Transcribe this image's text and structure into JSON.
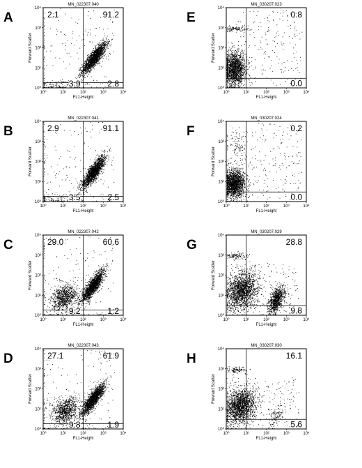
{
  "figure": {
    "panels": [
      "A",
      "B",
      "C",
      "D",
      "E",
      "F",
      "G",
      "H"
    ]
  },
  "chart_data": [
    {
      "panel": "A",
      "type": "scatter",
      "title": "MN_022307.040",
      "xlabel": "FL1-Height",
      "ylabel": "Forward Scatter",
      "xscale": "log",
      "yscale": "log",
      "xlim": [
        1,
        10000
      ],
      "ylim": [
        1,
        10000
      ],
      "x_ticks": [
        "10⁰",
        "10¹",
        "10²",
        "10³",
        "10⁴"
      ],
      "y_ticks": [
        "10⁰",
        "10¹",
        "10²",
        "10³",
        "10⁴"
      ],
      "gate": {
        "x": 100,
        "y": 1.8
      },
      "quadrants": {
        "upper_left": "2.1",
        "upper_right": "91.2",
        "lower_left": "3.9",
        "lower_right": "2.8"
      },
      "populations": [
        {
          "x_center": 350,
          "y_center": 32,
          "spread_x": 0.3,
          "spread_y": 0.38,
          "correlation": 0.85,
          "density": "high"
        },
        {
          "x_center": 5,
          "y_center": 1.4,
          "spread_x": 0.65,
          "spread_y": 0.15,
          "correlation": 0,
          "density": "low"
        },
        {
          "x_center": 20,
          "y_center": 60,
          "spread_x": 0.7,
          "spread_y": 0.8,
          "correlation": 0,
          "density": "sparse"
        }
      ]
    },
    {
      "panel": "B",
      "type": "scatter",
      "title": "MN_022307.041",
      "xlabel": "FL1-Height",
      "ylabel": "Forward Scatter",
      "xscale": "log",
      "yscale": "log",
      "xlim": [
        1,
        10000
      ],
      "ylim": [
        1,
        10000
      ],
      "x_ticks": [
        "10⁰",
        "10¹",
        "10²",
        "10³",
        "10⁴"
      ],
      "y_ticks": [
        "10⁰",
        "10¹",
        "10²",
        "10³",
        "10⁴"
      ],
      "gate": {
        "x": 100,
        "y": 1.8
      },
      "quadrants": {
        "upper_left": "2.9",
        "upper_right": "91.1",
        "lower_left": "3.5",
        "lower_right": "2.5"
      },
      "populations": [
        {
          "x_center": 320,
          "y_center": 30,
          "spread_x": 0.28,
          "spread_y": 0.38,
          "correlation": 0.85,
          "density": "high"
        },
        {
          "x_center": 5,
          "y_center": 1.4,
          "spread_x": 0.65,
          "spread_y": 0.15,
          "correlation": 0,
          "density": "low"
        },
        {
          "x_center": 20,
          "y_center": 60,
          "spread_x": 0.7,
          "spread_y": 0.8,
          "correlation": 0,
          "density": "sparse"
        }
      ]
    },
    {
      "panel": "C",
      "type": "scatter",
      "title": "MN_022307.042",
      "xlabel": "FL1-Height",
      "ylabel": "Forward Scatter",
      "xscale": "log",
      "yscale": "log",
      "xlim": [
        1,
        10000
      ],
      "ylim": [
        1,
        10000
      ],
      "x_ticks": [
        "10⁰",
        "10¹",
        "10²",
        "10³",
        "10⁴"
      ],
      "y_ticks": [
        "10⁰",
        "10¹",
        "10²",
        "10³",
        "10⁴"
      ],
      "gate": {
        "x": 100,
        "y": 1.8
      },
      "quadrants": {
        "upper_left": "29.0",
        "upper_right": "60.6",
        "lower_left": "9.2",
        "lower_right": "1.2"
      },
      "populations": [
        {
          "x_center": 300,
          "y_center": 30,
          "spread_x": 0.28,
          "spread_y": 0.38,
          "correlation": 0.85,
          "density": "high"
        },
        {
          "x_center": 12,
          "y_center": 8,
          "spread_x": 0.32,
          "spread_y": 0.32,
          "correlation": 0.3,
          "density": "medium"
        },
        {
          "x_center": 20,
          "y_center": 60,
          "spread_x": 0.7,
          "spread_y": 0.8,
          "correlation": 0,
          "density": "sparse"
        }
      ]
    },
    {
      "panel": "D",
      "type": "scatter",
      "title": "MN_022307.043",
      "xlabel": "FL1-Height",
      "ylabel": "Forward Scatter",
      "xscale": "log",
      "yscale": "log",
      "xlim": [
        1,
        10000
      ],
      "ylim": [
        1,
        10000
      ],
      "x_ticks": [
        "10⁰",
        "10¹",
        "10²",
        "10³",
        "10⁴"
      ],
      "y_ticks": [
        "10⁰",
        "10¹",
        "10²",
        "10³",
        "10⁴"
      ],
      "gate": {
        "x": 100,
        "y": 1.8
      },
      "quadrants": {
        "upper_left": "27.1",
        "upper_right": "61.9",
        "lower_left": "9.8",
        "lower_right": "1.9"
      },
      "populations": [
        {
          "x_center": 300,
          "y_center": 30,
          "spread_x": 0.28,
          "spread_y": 0.38,
          "correlation": 0.85,
          "density": "high"
        },
        {
          "x_center": 12,
          "y_center": 8,
          "spread_x": 0.32,
          "spread_y": 0.32,
          "correlation": 0.3,
          "density": "medium"
        },
        {
          "x_center": 20,
          "y_center": 60,
          "spread_x": 0.7,
          "spread_y": 0.8,
          "correlation": 0,
          "density": "sparse"
        }
      ]
    },
    {
      "panel": "E",
      "type": "scatter",
      "title": "MN_030207.023",
      "xlabel": "FL1-Height",
      "ylabel": "Forward Scatter",
      "xscale": "log",
      "yscale": "log",
      "xlim": [
        1,
        10000
      ],
      "ylim": [
        1,
        10000
      ],
      "x_ticks": [
        "10⁰",
        "10¹",
        "10²",
        "10³",
        "10⁴"
      ],
      "y_ticks": [
        "10⁰",
        "10¹",
        "10²",
        "10³",
        "10⁴"
      ],
      "gate": {
        "x": 10,
        "y": 3
      },
      "quadrants": {
        "upper_left": "",
        "upper_right": "0.8",
        "lower_left": "",
        "lower_right": "0.0"
      },
      "populations": [
        {
          "x_center": 2.5,
          "y_center": 9,
          "spread_x": 0.28,
          "spread_y": 0.42,
          "correlation": 0,
          "density": "high"
        },
        {
          "x_center": 3,
          "y_center": 900,
          "spread_x": 0.3,
          "spread_y": 0.08,
          "correlation": 0,
          "density": "low"
        },
        {
          "x_center": 150,
          "y_center": 100,
          "spread_x": 0.5,
          "spread_y": 0.6,
          "correlation": 0,
          "density": "sparse"
        }
      ]
    },
    {
      "panel": "F",
      "type": "scatter",
      "title": "MN_030207.024",
      "xlabel": "FL1-Height",
      "ylabel": "Forward Scatter",
      "xscale": "log",
      "yscale": "log",
      "xlim": [
        1,
        10000
      ],
      "ylim": [
        1,
        10000
      ],
      "x_ticks": [
        "10⁰",
        "10¹",
        "10²",
        "10³",
        "10⁴"
      ],
      "y_ticks": [
        "10⁰",
        "10¹",
        "10²",
        "10³",
        "10⁴"
      ],
      "gate": {
        "x": 10,
        "y": 3
      },
      "quadrants": {
        "upper_left": "",
        "upper_right": "0.2",
        "lower_left": "",
        "lower_right": "0.0"
      },
      "populations": [
        {
          "x_center": 2.5,
          "y_center": 8,
          "spread_x": 0.26,
          "spread_y": 0.35,
          "correlation": 0,
          "density": "high"
        },
        {
          "x_center": 3,
          "y_center": 600,
          "spread_x": 0.28,
          "spread_y": 0.45,
          "correlation": 0,
          "density": "low"
        },
        {
          "x_center": 150,
          "y_center": 100,
          "spread_x": 0.5,
          "spread_y": 0.6,
          "correlation": 0,
          "density": "sparse"
        }
      ]
    },
    {
      "panel": "G",
      "type": "scatter",
      "title": "MN_030207.029",
      "xlabel": "FL1-Height",
      "ylabel": "Forward Scatter",
      "xscale": "log",
      "yscale": "log",
      "xlim": [
        1,
        10000
      ],
      "ylim": [
        1,
        10000
      ],
      "x_ticks": [
        "10⁰",
        "10¹",
        "10²",
        "10³",
        "10⁴"
      ],
      "y_ticks": [
        "10⁰",
        "10¹",
        "10²",
        "10³",
        "10⁴"
      ],
      "gate": {
        "x": 10,
        "y": 3
      },
      "quadrants": {
        "upper_left": "",
        "upper_right": "28.8",
        "lower_left": "",
        "lower_right": "9.8"
      },
      "populations": [
        {
          "x_center": 6,
          "y_center": 18,
          "spread_x": 0.38,
          "spread_y": 0.45,
          "correlation": 0.2,
          "density": "high"
        },
        {
          "x_center": 320,
          "y_center": 6,
          "spread_x": 0.2,
          "spread_y": 0.32,
          "correlation": 0.5,
          "density": "medium"
        },
        {
          "x_center": 3,
          "y_center": 900,
          "spread_x": 0.25,
          "spread_y": 0.08,
          "correlation": 0,
          "density": "low"
        },
        {
          "x_center": 50,
          "y_center": 20,
          "spread_x": 0.6,
          "spread_y": 0.4,
          "correlation": 0,
          "density": "sparse"
        }
      ]
    },
    {
      "panel": "H",
      "type": "scatter",
      "title": "MN_030207.030",
      "xlabel": "FL1-Height",
      "ylabel": "Forward Scatter",
      "xscale": "log",
      "yscale": "log",
      "xlim": [
        1,
        10000
      ],
      "ylim": [
        1,
        10000
      ],
      "x_ticks": [
        "10⁰",
        "10¹",
        "10²",
        "10³",
        "10⁴"
      ],
      "y_ticks": [
        "10⁰",
        "10¹",
        "10²",
        "10³",
        "10⁴"
      ],
      "gate": {
        "x": 10,
        "y": 3
      },
      "quadrants": {
        "upper_left": "",
        "upper_right": "16.1",
        "lower_left": "",
        "lower_right": "5.6"
      },
      "populations": [
        {
          "x_center": 5,
          "y_center": 14,
          "spread_x": 0.38,
          "spread_y": 0.42,
          "correlation": 0.2,
          "density": "high"
        },
        {
          "x_center": 300,
          "y_center": 5,
          "spread_x": 0.2,
          "spread_y": 0.3,
          "correlation": 0.5,
          "density": "low"
        },
        {
          "x_center": 3,
          "y_center": 900,
          "spread_x": 0.25,
          "spread_y": 0.08,
          "correlation": 0,
          "density": "low"
        },
        {
          "x_center": 50,
          "y_center": 20,
          "spread_x": 0.6,
          "spread_y": 0.4,
          "correlation": 0,
          "density": "sparse"
        }
      ]
    }
  ]
}
